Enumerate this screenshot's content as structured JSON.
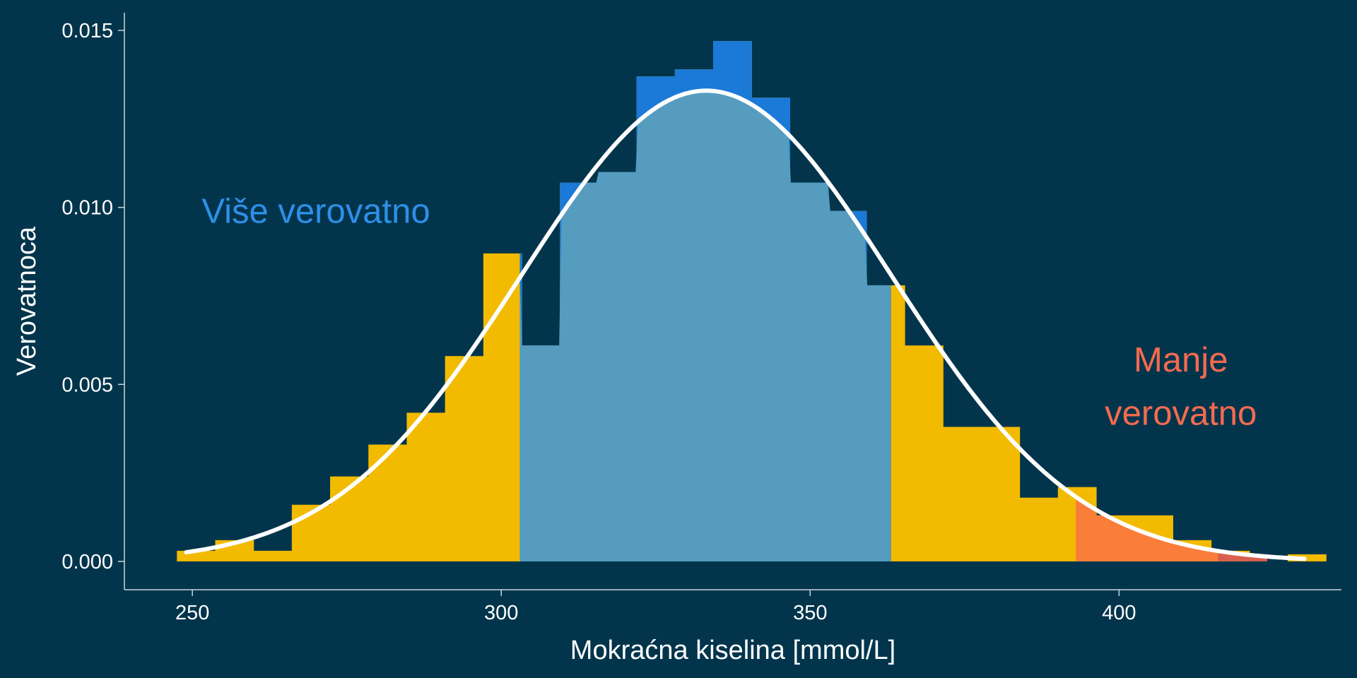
{
  "colors": {
    "background": "#02354c",
    "bar": "#f2bb00",
    "central_region": "#559cbf",
    "more_likely_overlay": "#1b79d8",
    "tail_region": "#fb7d3a",
    "tail_outer": "#d9604f",
    "curve": "#ffffff",
    "axis": "#c9d3d8",
    "more_likely_text": "#2f8fe8",
    "less_likely_text": "#f56a4f"
  },
  "chart_data": {
    "type": "bar",
    "title": "",
    "xlabel": "Mokraćna kiselina [mmol/L]",
    "ylabel": "Verovatnoca",
    "xlim": [
      239,
      436
    ],
    "ylim": [
      -0.0008,
      0.0155
    ],
    "xticks": [
      250,
      300,
      350,
      400
    ],
    "xtick_labels": [
      "250",
      "300",
      "350",
      "400"
    ],
    "yticks": [
      0.0,
      0.005,
      0.01,
      0.015
    ],
    "ytick_labels": [
      "0.000",
      "0.005",
      "0.010",
      "0.015"
    ],
    "bins": [
      {
        "x0": 247.5,
        "x1": 253.7,
        "density": 0.0003
      },
      {
        "x0": 253.7,
        "x1": 259.9,
        "density": 0.0006
      },
      {
        "x0": 259.9,
        "x1": 266.1,
        "density": 0.0003
      },
      {
        "x0": 266.1,
        "x1": 272.3,
        "density": 0.0016
      },
      {
        "x0": 272.3,
        "x1": 278.5,
        "density": 0.0024
      },
      {
        "x0": 278.5,
        "x1": 284.7,
        "density": 0.0033
      },
      {
        "x0": 284.7,
        "x1": 290.9,
        "density": 0.0042
      },
      {
        "x0": 290.9,
        "x1": 297.1,
        "density": 0.0058
      },
      {
        "x0": 297.1,
        "x1": 303.3,
        "density": 0.0087
      },
      {
        "x0": 303.3,
        "x1": 309.5,
        "density": 0.0061
      },
      {
        "x0": 309.5,
        "x1": 315.7,
        "density": 0.0107
      },
      {
        "x0": 315.7,
        "x1": 321.9,
        "density": 0.011
      },
      {
        "x0": 321.9,
        "x1": 328.1,
        "density": 0.0137
      },
      {
        "x0": 328.1,
        "x1": 334.3,
        "density": 0.0139
      },
      {
        "x0": 334.3,
        "x1": 340.5,
        "density": 0.0147
      },
      {
        "x0": 340.5,
        "x1": 346.7,
        "density": 0.0131
      },
      {
        "x0": 346.7,
        "x1": 352.9,
        "density": 0.0107
      },
      {
        "x0": 352.9,
        "x1": 359.1,
        "density": 0.0099
      },
      {
        "x0": 359.1,
        "x1": 365.3,
        "density": 0.0078
      },
      {
        "x0": 365.3,
        "x1": 371.5,
        "density": 0.0061
      },
      {
        "x0": 371.5,
        "x1": 377.7,
        "density": 0.0038
      },
      {
        "x0": 377.7,
        "x1": 383.9,
        "density": 0.0038
      },
      {
        "x0": 383.9,
        "x1": 390.1,
        "density": 0.0018
      },
      {
        "x0": 390.1,
        "x1": 396.3,
        "density": 0.0021
      },
      {
        "x0": 396.3,
        "x1": 402.5,
        "density": 0.0013
      },
      {
        "x0": 402.5,
        "x1": 408.7,
        "density": 0.0013
      },
      {
        "x0": 408.7,
        "x1": 414.9,
        "density": 0.0006
      },
      {
        "x0": 414.9,
        "x1": 421.1,
        "density": 0.0003
      },
      {
        "x0": 421.1,
        "x1": 427.3,
        "density": 0.0
      },
      {
        "x0": 427.3,
        "x1": 433.5,
        "density": 0.0002
      }
    ],
    "normal_curve": {
      "mean": 333.2,
      "sd": 30,
      "x_from": 249,
      "x_to": 430
    },
    "central_region": {
      "x_from": 303,
      "x_to": 363
    },
    "tail_region": {
      "x_from": 393,
      "x_to": 424,
      "outer_from": 416
    },
    "annotations": [
      {
        "id": "more-likely",
        "lines": [
          "Više verovatno"
        ],
        "x": 270,
        "y": 0.0099,
        "anchor": "middle"
      },
      {
        "id": "less-likely",
        "lines": [
          "Manje",
          "verovatno"
        ],
        "x": 410,
        "y": 0.0057,
        "anchor": "middle",
        "line_gap": 0.0015
      }
    ]
  }
}
